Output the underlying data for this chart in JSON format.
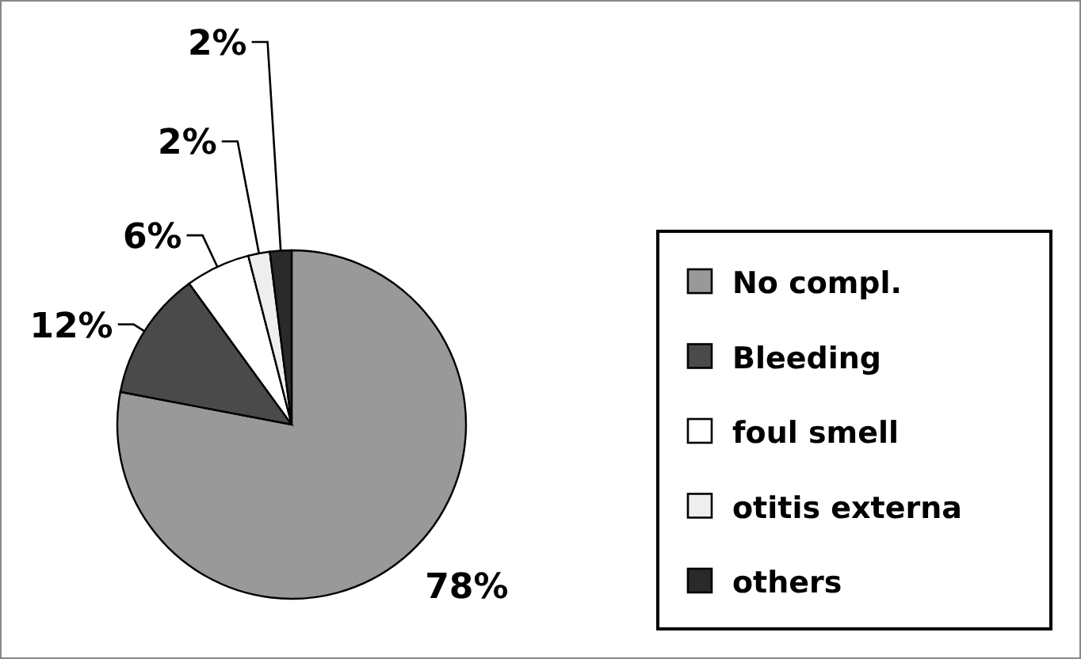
{
  "chart_data": {
    "type": "pie",
    "categories": [
      "No compl.",
      "Bleeding",
      "foul smell",
      "otitis externa",
      "others"
    ],
    "values": [
      78,
      12,
      6,
      2,
      2
    ],
    "colors": [
      "#999999",
      "#4a4a4a",
      "#ffffff",
      "#eeeeee",
      "#2a2a2a"
    ],
    "value_labels": [
      "78%",
      "12%",
      "6%",
      "2%",
      "2%"
    ],
    "legend": "right"
  }
}
